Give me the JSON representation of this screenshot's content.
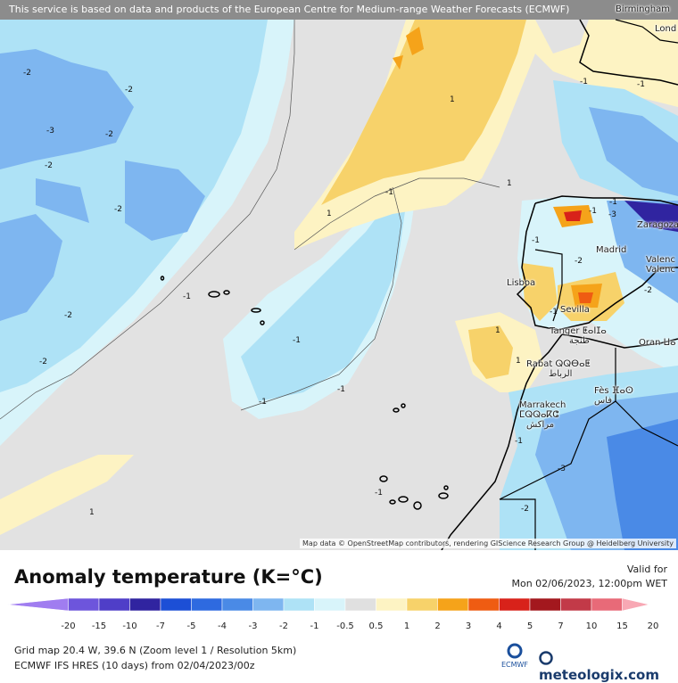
{
  "banner": "This service is based on data and products of the European Centre for Medium-range Weather Forecasts (ECMWF)",
  "attribution": "Map data © OpenStreetMap contributors, rendering GIScience Research Group @ Heidelberg University",
  "cities": {
    "birmingham": "Birmingham",
    "london": "Lond",
    "zaragoza": "Zaragoza",
    "madrid": "Madrid",
    "valencia1": "Valenc",
    "valencia2": "Valenc",
    "lisboa": "Lisboa",
    "sevilla": "Sevilla",
    "tanger": "Tanger ⵟⴰⵏⵊⴰ",
    "tanger_ar": "طنجة",
    "oran": "Oran ⵡⴰ",
    "rabat": "Rabat ⵕⵕⴱⴰⵟ",
    "rabat_ar": "الرباط",
    "fes": "Fès ⴼⴰⵙ",
    "fes_ar": "فاس",
    "marrakech": "Marrakech",
    "marrakech_tz": "ⵎⵕⵕⴰⴽⵛ",
    "marrakech_ar": "مراكش"
  },
  "contour_labels": [
    "-2",
    "-2",
    "-3",
    "-2",
    "-2",
    "-2",
    "-2",
    "-2",
    "-1",
    "-1",
    "-1",
    "-1",
    "-1",
    "-1",
    "-1",
    "-1",
    "-1",
    "-1",
    "-1",
    "-1",
    "1",
    "1",
    "1",
    "1",
    "1",
    "1",
    "-2",
    "-3",
    "-2",
    "-3",
    "-1",
    "-2"
  ],
  "legend": {
    "title": "Anomaly temperature (K=°C)",
    "valid_label": "Valid for",
    "valid_time": "Mon 02/06/2023, 12:00pm WET",
    "ticks": [
      "-20",
      "-15",
      "-10",
      "-7",
      "-5",
      "-4",
      "-3",
      "-2",
      "-1",
      "-0.5",
      "0.5",
      "1",
      "2",
      "3",
      "4",
      "5",
      "7",
      "10",
      "15",
      "20"
    ],
    "colors": [
      "#a07df0",
      "#6d55dc",
      "#4f3ec8",
      "#3024a0",
      "#1c4fd6",
      "#2e6ae0",
      "#4a8ae6",
      "#7eb6f0",
      "#aee2f6",
      "#d8f4fa",
      "#e0e0e0",
      "#fdf3c3",
      "#f7d26a",
      "#f5a31a",
      "#ef5c12",
      "#d8221a",
      "#a3181e",
      "#c23a48",
      "#e86a78",
      "#f8a8b4"
    ],
    "info_line1": "Grid map 20.4 W, 39.6 N (Zoom level 1 / Resolution 5km)",
    "info_line2": "ECMWF IFS HRES (10 days) from 02/04/2023/00z",
    "ecmwf_label": "ECMWF",
    "brand": "meteologix.com"
  }
}
